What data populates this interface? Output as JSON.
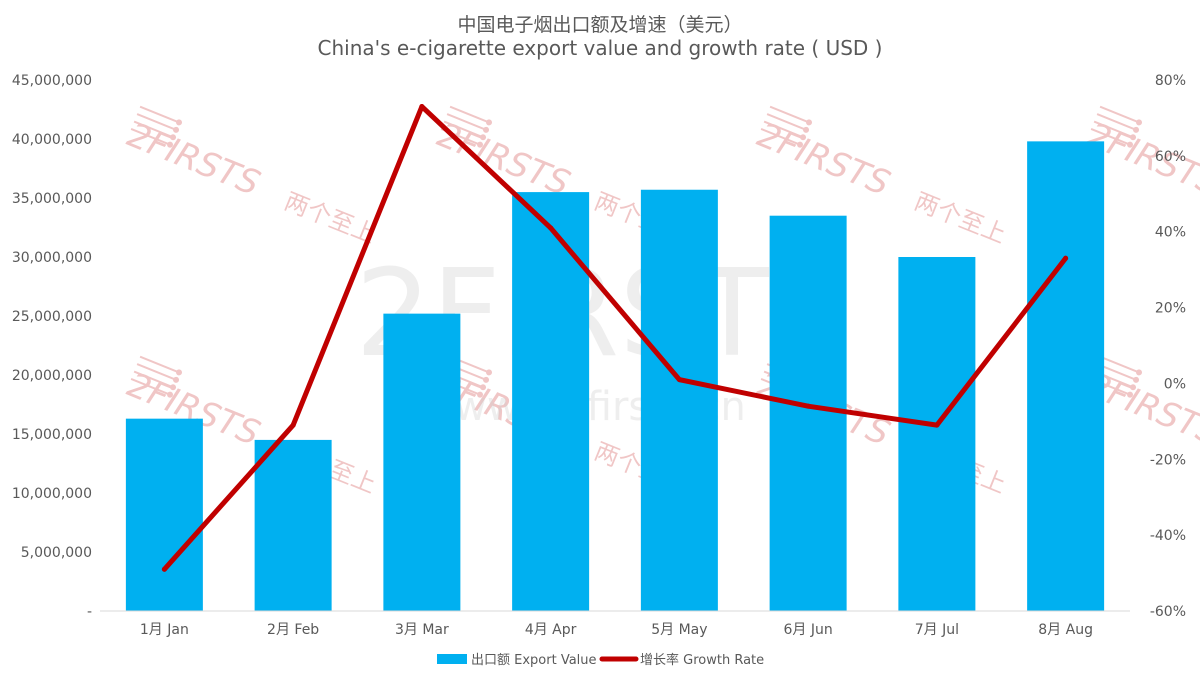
{
  "chart_data": {
    "type": "bar",
    "title": "中国电子烟出口额及增速（美元）",
    "subtitle": "China's e-cigarette export value and growth rate ( USD )",
    "categories": [
      "1月 Jan",
      "2月 Feb",
      "3月 Mar",
      "4月 Apr",
      "5月 May",
      "6月 Jun",
      "7月 Jul",
      "8月 Aug"
    ],
    "series": [
      {
        "name": "出口额 Export Value",
        "type": "bar",
        "axis": "left",
        "color": "#00B0F0",
        "values": [
          16300000,
          14500000,
          25200000,
          35500000,
          35700000,
          33500000,
          30000000,
          39800000
        ]
      },
      {
        "name": "增长率 Growth Rate",
        "type": "line",
        "axis": "right",
        "color": "#C00000",
        "values": [
          -49,
          -11,
          73,
          41,
          1,
          -6,
          -11,
          33
        ]
      }
    ],
    "y_left": {
      "min": 0,
      "max": 45000000,
      "tick_labels": [
        "-",
        "5,000,000",
        "10,000,000",
        "15,000,000",
        "20,000,000",
        "25,000,000",
        "30,000,000",
        "35,000,000",
        "40,000,000",
        "45,000,000"
      ]
    },
    "y_right": {
      "min": -60,
      "max": 80,
      "tick_labels": [
        "-60%",
        "-40%",
        "-20%",
        "0%",
        "20%",
        "40%",
        "60%",
        "80%"
      ]
    },
    "grid": false,
    "legend_position": "bottom",
    "watermark": {
      "brand": "2FIRSTS",
      "brand_cn": "两个至上",
      "url": "www.2firsts.cn"
    }
  }
}
